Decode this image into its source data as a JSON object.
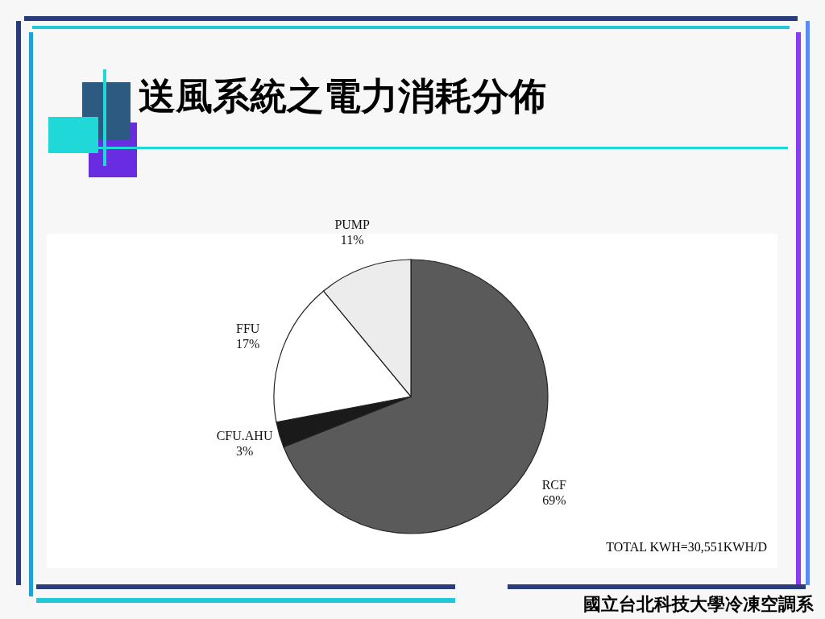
{
  "chart_data": {
    "type": "pie",
    "title": "送風系統之電力消耗分佈",
    "categories": [
      "RCF",
      "CFU.AHU",
      "FFU",
      "PUMP"
    ],
    "values": [
      69,
      3,
      17,
      11
    ],
    "value_labels": [
      "69%",
      "3%",
      "17%",
      "11%"
    ],
    "colors": [
      "#5a5a5a",
      "#1a1a1a",
      "#ffffff",
      "#ececec"
    ],
    "annotations": [
      "TOTAL KWH=30,551KWH/D",
      "國立台北科技大學冷凍空調系"
    ]
  }
}
